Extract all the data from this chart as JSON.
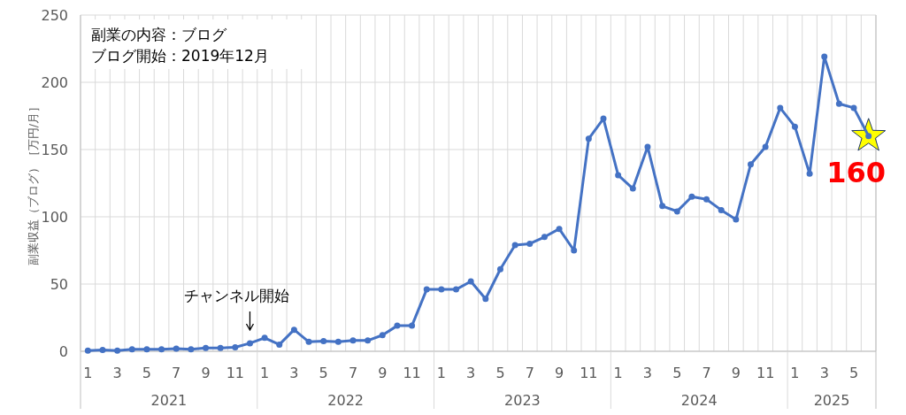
{
  "chart_data": {
    "type": "line",
    "ylabel": "副業収益（ブログ）［万円/月］",
    "categories": [
      "1",
      null,
      "3",
      null,
      "5",
      null,
      "7",
      null,
      "9",
      null,
      "11",
      null,
      "1",
      null,
      "3",
      null,
      "5",
      null,
      "7",
      null,
      "9",
      null,
      "11",
      null,
      "1",
      null,
      "3",
      null,
      "5",
      null,
      "7",
      null,
      "9",
      null,
      "11",
      null,
      "1",
      null,
      "3",
      null,
      "5",
      null,
      "7",
      null,
      "9",
      null,
      "11",
      null,
      "1",
      null,
      "3",
      null,
      "5",
      null
    ],
    "values": [
      0.5,
      1,
      0.5,
      1.5,
      1.5,
      1.5,
      2,
      1.5,
      2.5,
      2.5,
      3,
      6,
      10,
      5,
      16,
      7,
      7.5,
      7,
      8,
      8,
      12,
      19,
      19,
      46,
      46,
      46,
      52,
      39,
      61,
      79,
      80,
      85,
      91,
      75,
      158,
      173,
      131,
      121,
      152,
      108,
      104,
      115,
      113,
      105,
      98,
      139,
      152,
      181,
      167,
      132,
      219,
      184,
      181,
      160
    ],
    "value_labels": [
      null,
      null,
      null,
      null,
      null,
      null,
      null,
      null,
      null,
      null,
      null,
      null,
      null,
      null,
      null,
      null,
      null,
      null,
      null,
      null,
      null,
      null,
      null,
      null,
      null,
      null,
      null,
      null,
      null,
      null,
      null,
      null,
      null,
      null,
      null,
      null,
      null,
      null,
      null,
      null,
      null,
      null,
      null,
      null,
      null,
      null,
      null,
      null,
      null,
      null,
      null,
      null,
      null,
      "160"
    ],
    "color": "#4472c4",
    "ylim": [
      0,
      250
    ],
    "yticks": [
      0,
      50,
      100,
      150,
      200,
      250
    ],
    "grid": true,
    "marker": "circle",
    "line_style": "solid",
    "annotations": [
      "副業の内容：ブログ",
      "ブログ開始：2019年12月",
      "チャンネル開始",
      "2021",
      "2022",
      "2023",
      "2024",
      "2025"
    ]
  }
}
